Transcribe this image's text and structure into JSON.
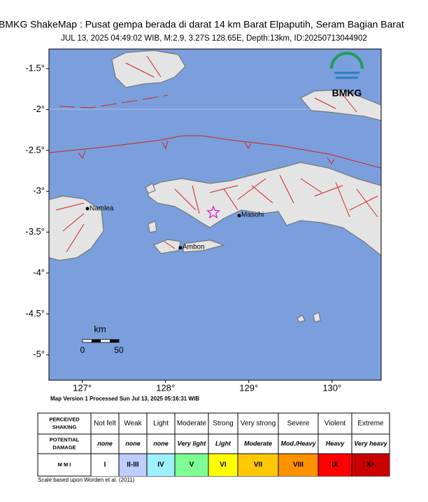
{
  "header": {
    "title": "BMKG ShakeMap : Pusat gempa berada di darat 14 km Barat Elpaputih, Seram Bagian Barat",
    "subtitle": "JUL 13, 2025 04:49:02 WIB, M:2.9, 3.27S 128.65E, Depth:13km, ID:20250713044902"
  },
  "map": {
    "latlim": [
      -1.26,
      -5.31
    ],
    "lonlim": [
      126.6,
      130.59
    ],
    "lat_ticks": [
      {
        "value": -1.5,
        "label": "-1.5°"
      },
      {
        "value": -2,
        "label": "-2°"
      },
      {
        "value": -2.5,
        "label": "-2.5°"
      },
      {
        "value": -3,
        "label": "-3°"
      },
      {
        "value": -3.5,
        "label": "-3.5°"
      },
      {
        "value": -4,
        "label": "-4°"
      },
      {
        "value": -4.5,
        "label": "-4.5°"
      },
      {
        "value": -5,
        "label": "-5°"
      }
    ],
    "lon_ticks": [
      {
        "value": 127,
        "label": "127°"
      },
      {
        "value": 128,
        "label": "128°"
      },
      {
        "value": 129,
        "label": "129°"
      },
      {
        "value": 130,
        "label": "130°"
      }
    ],
    "places": [
      "Namlea",
      "Masohi",
      "Ambon"
    ],
    "logo": "BMKG",
    "scale": {
      "unit": "km",
      "labels": [
        "0",
        "50"
      ]
    },
    "version": "Map Version 1 Processed Sun Jul 13, 2025 05:16:31 WIB"
  },
  "legend": {
    "row_headers": [
      [
        "PERCEIVED",
        "SHAKING"
      ],
      [
        "POTENTIAL",
        "DAMAGE"
      ],
      [
        "M M I"
      ]
    ],
    "shaking": [
      "Not felt",
      "Weak",
      "Light",
      "Moderate",
      "Strong",
      "Very strong",
      "Severe",
      "Violent",
      "Extreme"
    ],
    "damage": [
      "none",
      "none",
      "none",
      "Very light",
      "Light",
      "Moderate",
      "Mod./Heavy",
      "Heavy",
      "Very heavy"
    ],
    "mmi": [
      "I",
      "II-III",
      "IV",
      "V",
      "VI",
      "VII",
      "VIII",
      "IX",
      "X+"
    ],
    "mmi_colors": [
      "#ffffff",
      "#bfccff",
      "#9ff0ff",
      "#7dff94",
      "#ffff00",
      "#ffc800",
      "#ff9100",
      "#ff0000",
      "#c80000"
    ]
  },
  "footer": "Scale based upon Worden et al. (2011)"
}
